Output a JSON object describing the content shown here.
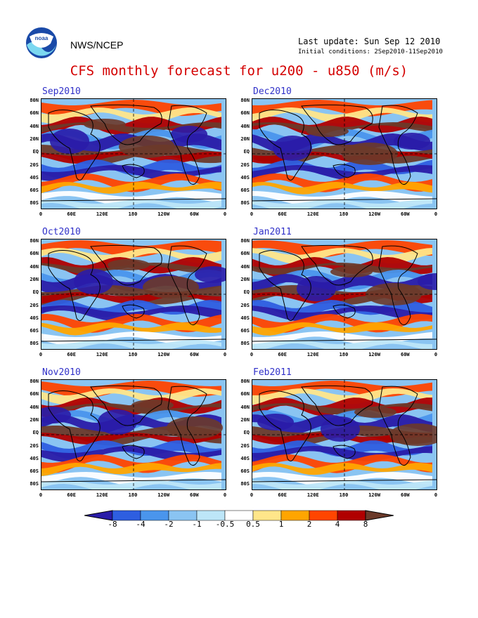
{
  "header": {
    "org": "NWS/NCEP",
    "last_update": "Last update: Sun Sep 12 2010",
    "initial_conditions": "Initial conditions: 2Sep2010-11Sep2010",
    "title": "CFS monthly forecast for u200 - u850 (m/s)",
    "logo_text": "noaa"
  },
  "axes": {
    "lat_labels": [
      "80N",
      "60N",
      "40N",
      "20N",
      "EQ",
      "20S",
      "40S",
      "60S",
      "80S"
    ],
    "lon_labels": [
      "0",
      "60E",
      "120E",
      "180",
      "120W",
      "60W",
      "0"
    ]
  },
  "panels": [
    {
      "title": "Sep2010"
    },
    {
      "title": "Dec2010"
    },
    {
      "title": "Oct2010"
    },
    {
      "title": "Jan2011"
    },
    {
      "title": "Nov2010"
    },
    {
      "title": "Feb2011"
    }
  ],
  "colorbar": {
    "labels": [
      "-8",
      "-4",
      "-2",
      "-1",
      "-0.5",
      "0.5",
      "1",
      "2",
      "4",
      "8"
    ],
    "colors": [
      "#2a1ca8",
      "#2e5ee0",
      "#4a95ec",
      "#8ac4f2",
      "#bde6f8",
      "#ffffff",
      "#ffe68a",
      "#ffa500",
      "#ff4500",
      "#b00000",
      "#6b3a2a"
    ]
  }
}
